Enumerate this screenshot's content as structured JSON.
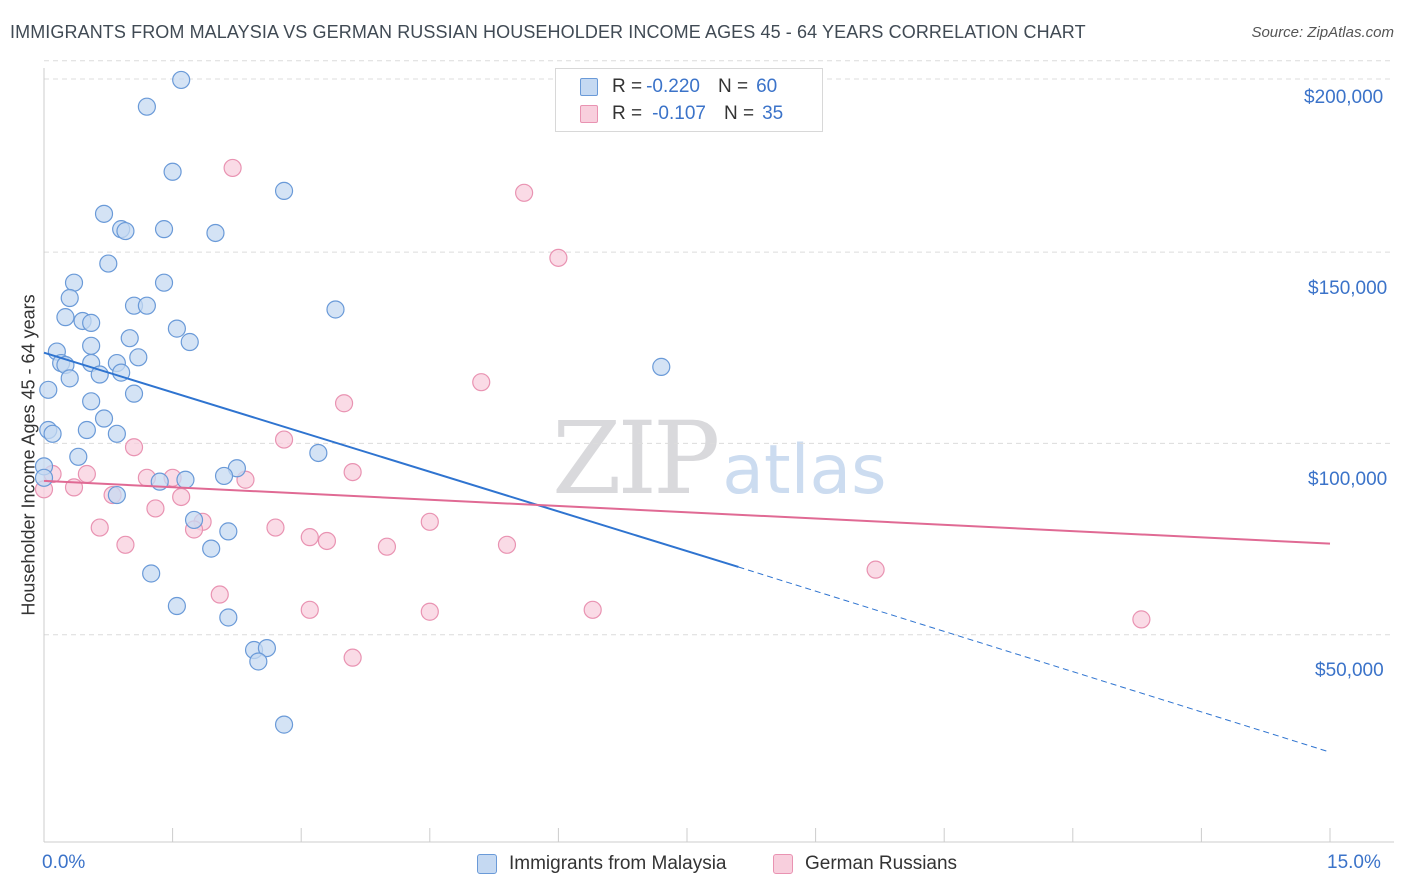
{
  "header": {
    "title": "IMMIGRANTS FROM MALAYSIA VS GERMAN RUSSIAN HOUSEHOLDER INCOME AGES 45 - 64 YEARS CORRELATION CHART",
    "source": "Source: ZipAtlas.com"
  },
  "watermark": {
    "zip": "ZIP",
    "atlas": "atlas"
  },
  "legend": {
    "rows": [
      {
        "r_label": "R =",
        "r_value": "-0.220",
        "n_label": "N =",
        "n_value": "60"
      },
      {
        "r_label": "R =",
        "r_value": "-0.107",
        "n_label": "N =",
        "n_value": "35"
      }
    ]
  },
  "bottom_legend": {
    "items": [
      {
        "label": "Immigrants from Malaysia"
      },
      {
        "label": "German Russians"
      }
    ]
  },
  "colors": {
    "series1_fill": "#c5d9f2",
    "series1_stroke": "#6a9ad8",
    "series1_line": "#2f74d0",
    "series2_fill": "#f8cfdd",
    "series2_stroke": "#e993b2",
    "series2_line": "#e06a94",
    "grid": "#dcdcdc",
    "axis": "#cccccc",
    "tick_text": "#3b73c9"
  },
  "chart_data": {
    "type": "scatter",
    "title": "IMMIGRANTS FROM MALAYSIA VS GERMAN RUSSIAN HOUSEHOLDER INCOME AGES 45 - 64 YEARS CORRELATION CHART",
    "xlabel": "",
    "ylabel": "Householder Income Ages 45 - 64 years",
    "xlim": [
      0,
      15
    ],
    "ylim": [
      0,
      205000
    ],
    "x_tick_labels": [
      "0.0%",
      "15.0%"
    ],
    "y_ticks": [
      50000,
      100000,
      150000,
      200000
    ],
    "y_tick_labels": [
      "$50,000",
      "$100,000",
      "$150,000",
      "$200,000"
    ],
    "grid": true,
    "legend_position": "top-center",
    "series": [
      {
        "name": "Immigrants from Malaysia",
        "R": -0.22,
        "N": 60,
        "trend": {
          "x0": 0.0,
          "y0": 123700,
          "x1": 8.1,
          "y1": 67700,
          "dashed_to_x": 15.0,
          "dashed_to_y": 19300
        },
        "points": [
          [
            1.6,
            195000
          ],
          [
            1.2,
            188000
          ],
          [
            1.5,
            171000
          ],
          [
            2.8,
            166000
          ],
          [
            0.7,
            160000
          ],
          [
            0.9,
            156000
          ],
          [
            0.95,
            155500
          ],
          [
            1.4,
            156000
          ],
          [
            2.0,
            155000
          ],
          [
            0.75,
            147000
          ],
          [
            0.35,
            142000
          ],
          [
            1.4,
            142000
          ],
          [
            0.3,
            138000
          ],
          [
            1.05,
            136000
          ],
          [
            1.2,
            136000
          ],
          [
            3.4,
            135000
          ],
          [
            0.25,
            133000
          ],
          [
            0.45,
            132000
          ],
          [
            0.55,
            131500
          ],
          [
            1.55,
            130000
          ],
          [
            1.0,
            127500
          ],
          [
            1.7,
            126500
          ],
          [
            0.55,
            125500
          ],
          [
            0.15,
            124000
          ],
          [
            1.1,
            122500
          ],
          [
            0.85,
            121000
          ],
          [
            0.2,
            121000
          ],
          [
            0.25,
            120500
          ],
          [
            0.55,
            121000
          ],
          [
            7.2,
            120000
          ],
          [
            0.9,
            118500
          ],
          [
            0.3,
            117000
          ],
          [
            0.65,
            118000
          ],
          [
            0.05,
            114000
          ],
          [
            1.05,
            113000
          ],
          [
            0.55,
            111000
          ],
          [
            0.7,
            106500
          ],
          [
            0.05,
            103500
          ],
          [
            0.1,
            102500
          ],
          [
            0.5,
            103500
          ],
          [
            0.85,
            102500
          ],
          [
            3.2,
            97500
          ],
          [
            0.4,
            96500
          ],
          [
            0.0,
            94000
          ],
          [
            2.25,
            93500
          ],
          [
            2.1,
            91500
          ],
          [
            1.65,
            90500
          ],
          [
            1.35,
            90000
          ],
          [
            0.85,
            86500
          ],
          [
            1.75,
            80000
          ],
          [
            2.15,
            77000
          ],
          [
            1.95,
            72500
          ],
          [
            1.25,
            66000
          ],
          [
            1.55,
            57500
          ],
          [
            2.15,
            54500
          ],
          [
            2.45,
            46000
          ],
          [
            2.6,
            46500
          ],
          [
            2.5,
            43000
          ],
          [
            2.8,
            26500
          ],
          [
            0.0,
            91000
          ]
        ]
      },
      {
        "name": "German Russians",
        "R": -0.107,
        "N": 35,
        "trend": {
          "x0": 0.0,
          "y0": 90200,
          "x1": 15.0,
          "y1": 73800
        },
        "points": [
          [
            2.2,
            172000
          ],
          [
            5.6,
            165500
          ],
          [
            6.0,
            148500
          ],
          [
            5.1,
            116000
          ],
          [
            3.5,
            110500
          ],
          [
            2.8,
            101000
          ],
          [
            1.05,
            99000
          ],
          [
            0.1,
            92000
          ],
          [
            0.5,
            92000
          ],
          [
            3.6,
            92500
          ],
          [
            1.2,
            91000
          ],
          [
            1.5,
            91000
          ],
          [
            2.35,
            90500
          ],
          [
            0.35,
            88500
          ],
          [
            0.0,
            88000
          ],
          [
            0.8,
            86500
          ],
          [
            1.6,
            86000
          ],
          [
            1.3,
            83000
          ],
          [
            1.85,
            79500
          ],
          [
            4.5,
            79500
          ],
          [
            1.75,
            77500
          ],
          [
            0.65,
            78000
          ],
          [
            2.7,
            78000
          ],
          [
            3.1,
            75500
          ],
          [
            3.3,
            74500
          ],
          [
            0.95,
            73500
          ],
          [
            4.0,
            73000
          ],
          [
            5.4,
            73500
          ],
          [
            9.7,
            67000
          ],
          [
            2.05,
            60500
          ],
          [
            3.1,
            56500
          ],
          [
            4.5,
            56000
          ],
          [
            6.4,
            56500
          ],
          [
            12.8,
            54000
          ],
          [
            3.6,
            44000
          ]
        ]
      }
    ]
  }
}
